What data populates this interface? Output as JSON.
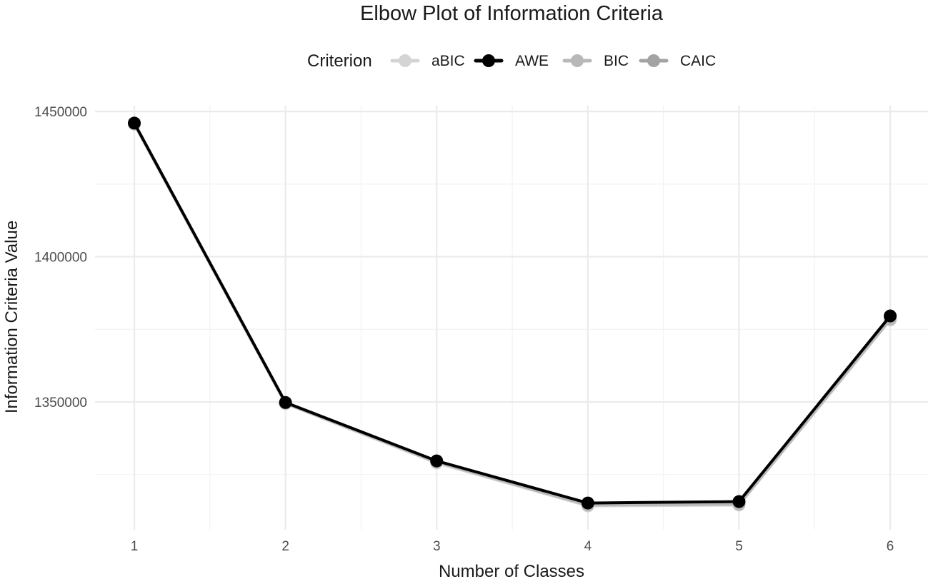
{
  "chart_data": {
    "type": "line",
    "title": "Elbow Plot of Information Criteria",
    "xlabel": "Number of Classes",
    "ylabel": "Information Criteria Value",
    "x": [
      1,
      2,
      3,
      4,
      5,
      6
    ],
    "x_ticks": [
      "1",
      "2",
      "3",
      "4",
      "5",
      "6"
    ],
    "xlim": [
      0.74,
      6.25
    ],
    "ylim": [
      1306000,
      1452000
    ],
    "y_ticks": [
      1350000,
      1400000,
      1450000
    ],
    "y_tick_labels": [
      "1350000",
      "1400000",
      "1450000"
    ],
    "grid": true,
    "legend": {
      "title": "Criterion",
      "position": "top"
    },
    "series": [
      {
        "name": "aBIC",
        "color": "#d4d4d4",
        "values": [
          1445600,
          1349400,
          1329000,
          1314200,
          1314500,
          1378200
        ]
      },
      {
        "name": "AWE",
        "color": "#000000",
        "values": [
          1446000,
          1349800,
          1329700,
          1315200,
          1315700,
          1379600
        ]
      },
      {
        "name": "BIC",
        "color": "#b8b8b8",
        "values": [
          1445800,
          1349600,
          1329300,
          1314500,
          1314800,
          1378600
        ]
      },
      {
        "name": "CAIC",
        "color": "#a3a3a3",
        "values": [
          1445900,
          1349700,
          1329400,
          1314700,
          1315000,
          1378900
        ]
      }
    ],
    "draw_order": [
      "aBIC",
      "CAIC",
      "BIC",
      "AWE"
    ]
  }
}
